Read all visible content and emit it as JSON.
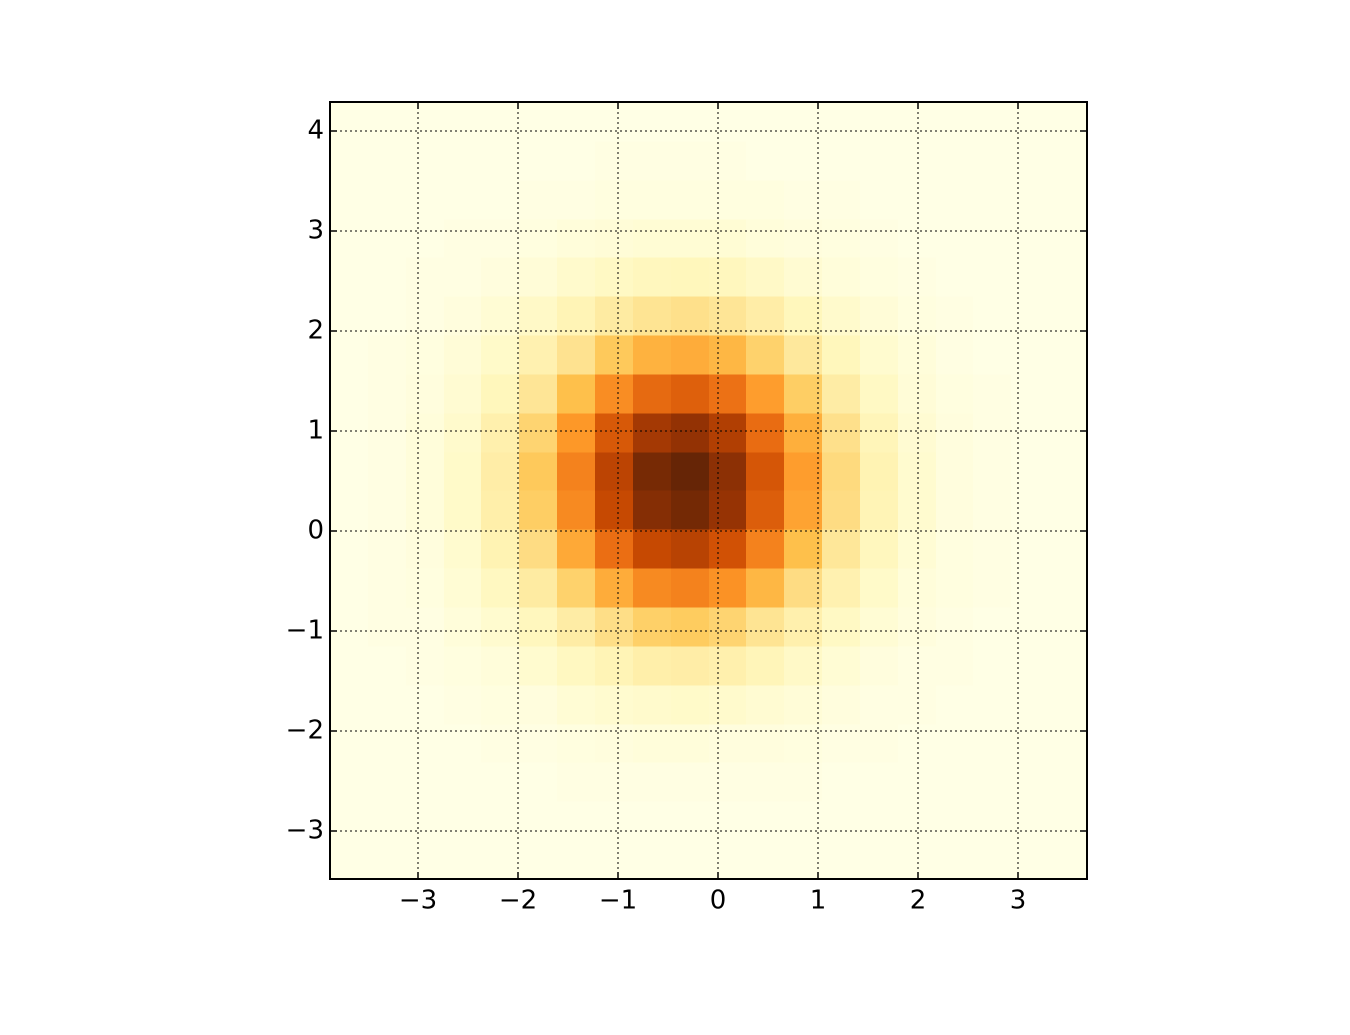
{
  "chart_data": {
    "type": "heatmap",
    "xlim": [
      -3.88,
      3.69
    ],
    "ylim": [
      -3.48,
      4.29
    ],
    "xticks": [
      {
        "value": -3,
        "label": "−3"
      },
      {
        "value": -2,
        "label": "−2"
      },
      {
        "value": -1,
        "label": "−1"
      },
      0,
      1,
      2,
      3
    ],
    "yticks": [
      {
        "value": -3,
        "label": "−3"
      },
      {
        "value": -2,
        "label": "−2"
      },
      {
        "value": -1,
        "label": "−1"
      },
      0,
      1,
      2,
      3,
      4
    ],
    "grid": true,
    "colormap": [
      "#ffffe5",
      "#fff7bc",
      "#fee391",
      "#fec44f",
      "#fe9929",
      "#ec7014",
      "#cc4c02",
      "#993404",
      "#662506"
    ],
    "xbins": [
      -3.88,
      -3.5,
      -3.12,
      -2.74,
      -2.37,
      -1.99,
      -1.61,
      -1.23,
      -0.85,
      -0.47,
      -0.09,
      0.28,
      0.66,
      1.04,
      1.42,
      1.8,
      2.18,
      2.55,
      2.93,
      3.31,
      3.69
    ],
    "ybins": [
      -3.48,
      -3.09,
      -2.7,
      -2.31,
      -1.93,
      -1.54,
      -1.15,
      -0.76,
      -0.37,
      0.02,
      0.41,
      0.79,
      1.18,
      1.57,
      1.96,
      2.35,
      2.74,
      3.12,
      3.51,
      3.9,
      4.29
    ],
    "values": [
      [
        0,
        0,
        0,
        0,
        0,
        0,
        0,
        0,
        0,
        0,
        0,
        0,
        0,
        0,
        0,
        0,
        0,
        0,
        0,
        0
      ],
      [
        0,
        0,
        0,
        0,
        0,
        0,
        0,
        0,
        0,
        0,
        0,
        0,
        0,
        0,
        0,
        0,
        0,
        0,
        0,
        0
      ],
      [
        0,
        0,
        0,
        0,
        0,
        0,
        1,
        1,
        1,
        1,
        1,
        1,
        1,
        0,
        0,
        0,
        0,
        0,
        0,
        0
      ],
      [
        0,
        0,
        0,
        0,
        1,
        1,
        2,
        3,
        4,
        4,
        3,
        3,
        2,
        1,
        1,
        0,
        0,
        0,
        0,
        0
      ],
      [
        0,
        0,
        0,
        1,
        2,
        3,
        6,
        8,
        9,
        10,
        9,
        7,
        5,
        3,
        1,
        1,
        0,
        0,
        0,
        0
      ],
      [
        0,
        0,
        1,
        2,
        4,
        8,
        13,
        17,
        21,
        22,
        20,
        16,
        11,
        6,
        3,
        1,
        1,
        0,
        0,
        0
      ],
      [
        0,
        1,
        1,
        4,
        8,
        14,
        23,
        32,
        39,
        41,
        37,
        29,
        20,
        12,
        6,
        3,
        1,
        0,
        0,
        0
      ],
      [
        0,
        1,
        2,
        6,
        13,
        24,
        38,
        53,
        65,
        68,
        62,
        49,
        33,
        19,
        10,
        4,
        2,
        1,
        0,
        0
      ],
      [
        0,
        1,
        3,
        8,
        18,
        33,
        54,
        75,
        91,
        95,
        87,
        68,
        46,
        27,
        14,
        6,
        2,
        1,
        0,
        0
      ],
      [
        0,
        1,
        4,
        10,
        21,
        40,
        65,
        91,
        110,
        115,
        105,
        82,
        56,
        33,
        17,
        8,
        3,
        1,
        0,
        0
      ],
      [
        0,
        1,
        4,
        10,
        22,
        42,
        68,
        94,
        114,
        119,
        108,
        85,
        58,
        34,
        18,
        8,
        3,
        1,
        0,
        0
      ],
      [
        0,
        1,
        4,
        9,
        20,
        37,
        60,
        84,
        101,
        106,
        97,
        76,
        52,
        31,
        16,
        7,
        3,
        1,
        0,
        0
      ],
      [
        0,
        1,
        3,
        7,
        15,
        28,
        46,
        64,
        77,
        81,
        74,
        58,
        40,
        23,
        12,
        5,
        2,
        1,
        0,
        0
      ],
      [
        0,
        1,
        2,
        5,
        10,
        19,
        30,
        42,
        51,
        53,
        49,
        38,
        26,
        15,
        8,
        4,
        1,
        0,
        0,
        0
      ],
      [
        0,
        0,
        1,
        3,
        6,
        11,
        17,
        24,
        29,
        31,
        28,
        22,
        15,
        9,
        5,
        2,
        1,
        0,
        0,
        0
      ],
      [
        0,
        0,
        1,
        1,
        3,
        5,
        9,
        12,
        14,
        15,
        14,
        11,
        7,
        4,
        2,
        1,
        0,
        0,
        0,
        0
      ],
      [
        0,
        0,
        0,
        1,
        1,
        2,
        4,
        5,
        6,
        6,
        6,
        4,
        3,
        2,
        1,
        0,
        0,
        0,
        0,
        0
      ],
      [
        0,
        0,
        0,
        0,
        0,
        1,
        1,
        2,
        2,
        2,
        2,
        2,
        1,
        1,
        0,
        0,
        0,
        0,
        0,
        0
      ],
      [
        0,
        0,
        0,
        0,
        0,
        0,
        0,
        1,
        1,
        1,
        1,
        0,
        0,
        0,
        0,
        0,
        0,
        0,
        0,
        0
      ],
      [
        0,
        0,
        0,
        0,
        0,
        0,
        0,
        0,
        0,
        0,
        0,
        0,
        0,
        0,
        0,
        0,
        0,
        0,
        0,
        0
      ]
    ]
  }
}
